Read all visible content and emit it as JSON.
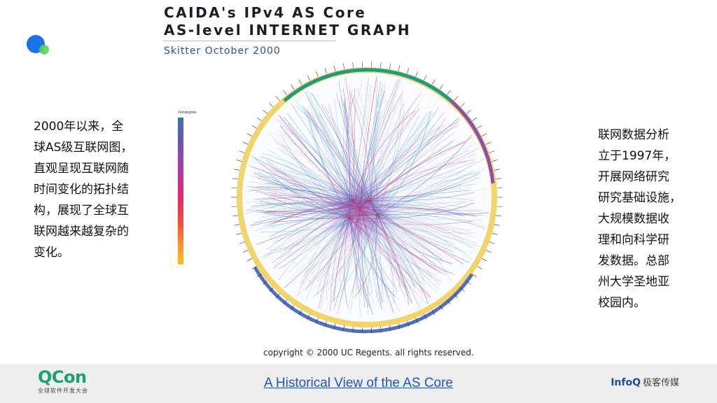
{
  "poster": {
    "title_line1": "CAIDA's IPv4 AS Core",
    "title_line2": "AS-level INTERNET GRAPH",
    "subtitle": "Skitter October 2000",
    "copyright": "copyright © 2000 UC Regents. all rights reserved.",
    "legend_title": "Outdegree"
  },
  "left_text": {
    "lines": [
      "2000年以来，全",
      "球AS级互联网图，",
      "直观呈现互联网随",
      "时间变化的拓扑结",
      "构，展现了全球互",
      "联网越来越复杂的",
      "变化。"
    ]
  },
  "right_text": {
    "lines": [
      "联网数据分析",
      "立于1997年，",
      "开展网络研究",
      "研究基础设施，",
      "大规模数据收",
      "理和向科学研",
      "发数据。总部",
      "州大学圣地亚",
      "校园内。"
    ]
  },
  "footer": {
    "qcon_brand": "QCon",
    "qcon_tagline": "全球软件开发大会",
    "link_text": "A Historical View of the AS Core",
    "infoq_brand": "InfoQ",
    "infoq_cn": "极客传媒"
  },
  "colors": {
    "accent_blue": "#1a73e8",
    "accent_green": "#5ad35a",
    "link": "#1f55c6",
    "qcon_green": "#1aa36a"
  }
}
